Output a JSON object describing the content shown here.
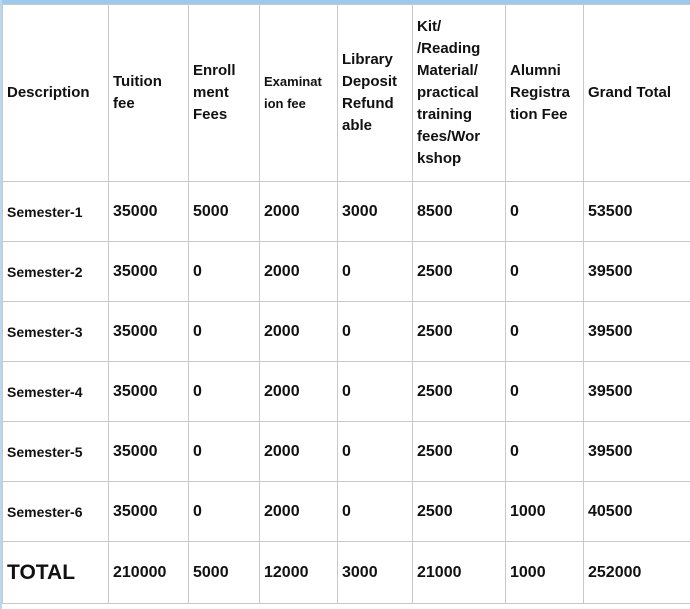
{
  "headers": [
    "Description",
    "Tuition fee",
    "Enroll ment Fees",
    "Examinat ion fee",
    "Library Deposit Refund able",
    "Kit/ /Reading Material/ practical training fees/Wor kshop",
    "Alumni Registra tion Fee",
    "Grand Total"
  ],
  "rows": [
    [
      "Semester-1",
      "35000",
      "5000",
      "2000",
      "3000",
      "8500",
      "0",
      "53500"
    ],
    [
      "Semester-2",
      "35000",
      "0",
      "2000",
      "0",
      "2500",
      "0",
      "39500"
    ],
    [
      "Semester-3",
      "35000",
      "0",
      "2000",
      "0",
      "2500",
      "0",
      "39500"
    ],
    [
      "Semester-4",
      "35000",
      "0",
      "2000",
      "0",
      "2500",
      "0",
      "39500"
    ],
    [
      "Semester-5",
      "35000",
      "0",
      "2000",
      "0",
      "2500",
      "0",
      "39500"
    ],
    [
      "Semester-6",
      "35000",
      "0",
      "2000",
      "0",
      "2500",
      "1000",
      "40500"
    ]
  ],
  "total": [
    "TOTAL",
    "210000",
    "5000",
    "12000",
    "3000",
    "21000",
    "1000",
    "252000"
  ]
}
